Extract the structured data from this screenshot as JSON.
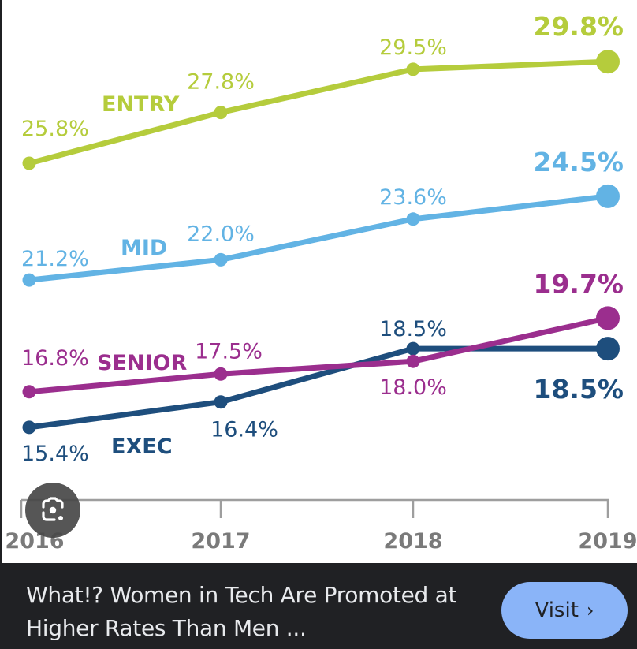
{
  "chart_data": {
    "type": "line",
    "title": "",
    "xlabel": "",
    "ylabel": "",
    "x": [
      "2016",
      "2017",
      "2018",
      "2019"
    ],
    "ylim": [
      14,
      30.5
    ],
    "grid": false,
    "legend": "inline-labels",
    "series": [
      {
        "name": "ENTRY",
        "color": "#b5cc3c",
        "values": [
          25.8,
          27.8,
          29.5,
          29.8
        ],
        "labels": [
          "25.8%",
          "27.8%",
          "29.5%",
          "29.8%"
        ]
      },
      {
        "name": "MID",
        "color": "#62b3e4",
        "values": [
          21.2,
          22.0,
          23.6,
          24.5
        ],
        "labels": [
          "21.2%",
          "22.0%",
          "23.6%",
          "24.5%"
        ]
      },
      {
        "name": "SENIOR",
        "color": "#9b2e8e",
        "values": [
          16.8,
          17.5,
          18.0,
          19.7
        ],
        "labels": [
          "16.8%",
          "17.5%",
          "18.0%",
          "19.7%"
        ]
      },
      {
        "name": "EXEC",
        "color": "#1e4e7d",
        "values": [
          15.4,
          16.4,
          18.5,
          18.5
        ],
        "labels": [
          "15.4%",
          "16.4%",
          "18.5%",
          "18.5%"
        ]
      }
    ],
    "axis_color": "#9e9e9e",
    "tick_label_color": "#7a7a7a"
  },
  "caption": {
    "title": "What!? Women in Tech Are Promoted at Higher Rates Than Men ...",
    "visit_label": "Visit",
    "visit_icon": "chevron-right-icon"
  },
  "overlay": {
    "lens_icon": "google-lens-icon"
  }
}
